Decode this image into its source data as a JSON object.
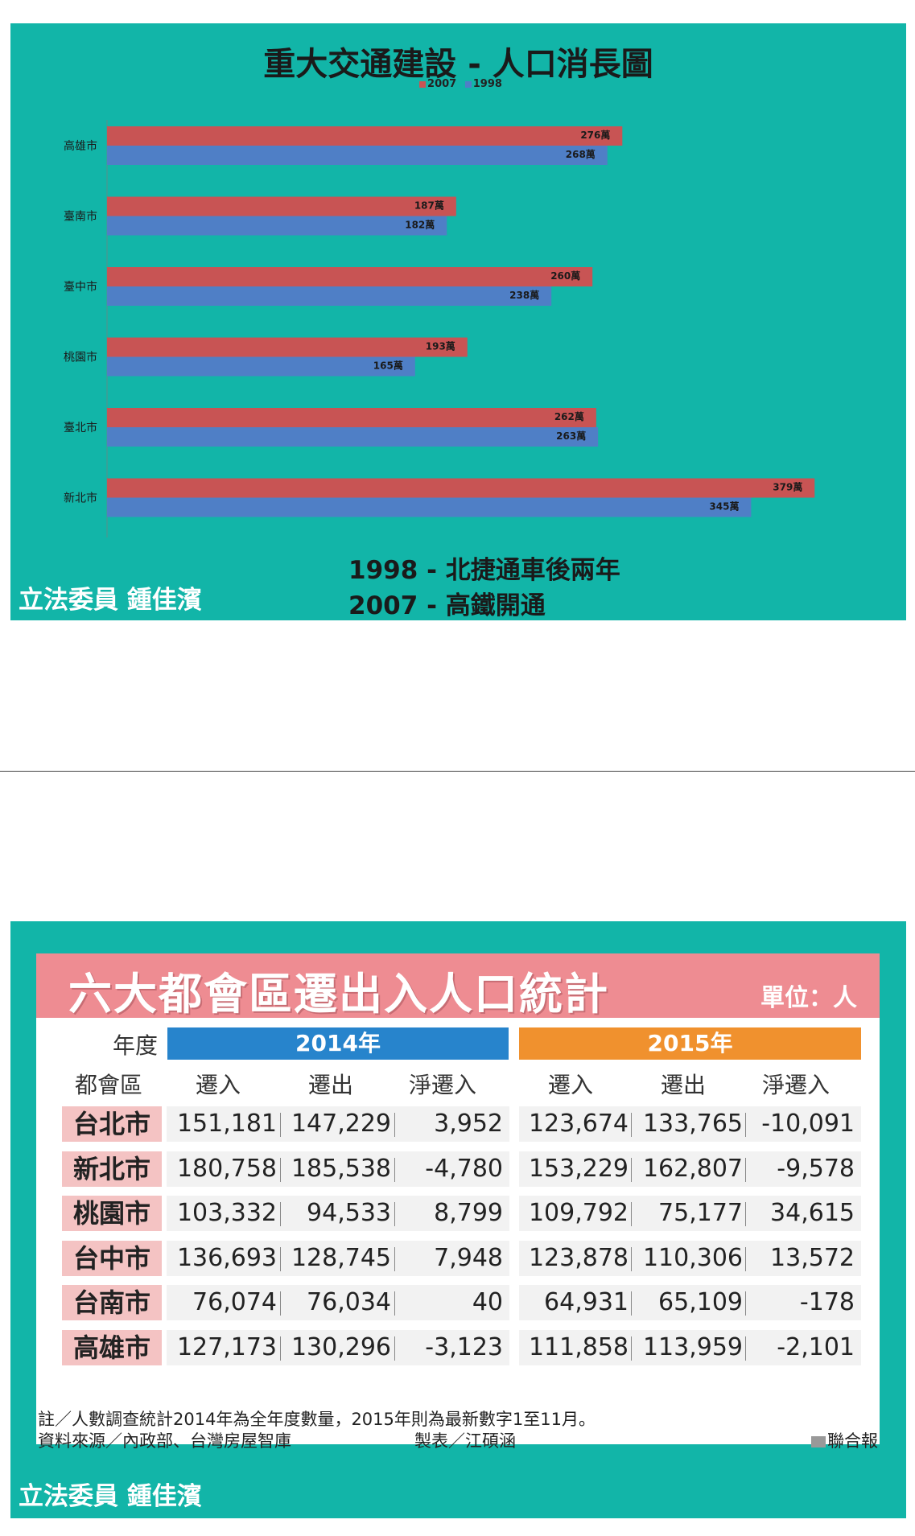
{
  "slide1": {
    "legislator": "立法委員 鍾佳濱",
    "notes": [
      "1998 - 北捷通車後兩年",
      "2007 - 高鐵開通"
    ]
  },
  "chart_data": [
    {
      "type": "bar",
      "orientation": "horizontal",
      "title": "重大交通建設 - 人口消長圖",
      "legend_position": "top",
      "categories": [
        "高雄市",
        "臺南市",
        "臺中市",
        "桃園市",
        "臺北市",
        "新北市"
      ],
      "value_suffix": "萬",
      "series": [
        {
          "name": "2007",
          "color": "#c85454",
          "values": [
            276,
            187,
            260,
            193,
            262,
            379
          ]
        },
        {
          "name": "1998",
          "color": "#4f7fc6",
          "values": [
            268,
            182,
            238,
            165,
            263,
            345
          ]
        }
      ]
    },
    {
      "type": "table",
      "title": "六大都會區遷出入人口統計",
      "unit": "單位：人",
      "year_label": "年度",
      "row_label": "都會區",
      "years": [
        "2014年",
        "2015年"
      ],
      "columns": [
        "遷入",
        "遷出",
        "淨遷入"
      ],
      "rows": [
        {
          "city": "台北市",
          "y2014": [
            "151,181",
            "147,229",
            "3,952"
          ],
          "y2015": [
            "123,674",
            "133,765",
            "-10,091"
          ]
        },
        {
          "city": "新北市",
          "y2014": [
            "180,758",
            "185,538",
            "-4,780"
          ],
          "y2015": [
            "153,229",
            "162,807",
            "-9,578"
          ]
        },
        {
          "city": "桃園市",
          "y2014": [
            "103,332",
            "94,533",
            "8,799"
          ],
          "y2015": [
            "109,792",
            "75,177",
            "34,615"
          ]
        },
        {
          "city": "台中市",
          "y2014": [
            "136,693",
            "128,745",
            "7,948"
          ],
          "y2015": [
            "123,878",
            "110,306",
            "13,572"
          ]
        },
        {
          "city": "台南市",
          "y2014": [
            "76,074",
            "76,034",
            "40"
          ],
          "y2015": [
            "64,931",
            "65,109",
            "-178"
          ]
        },
        {
          "city": "高雄市",
          "y2014": [
            "127,173",
            "130,296",
            "-3,123"
          ],
          "y2015": [
            "111,858",
            "113,959",
            "-2,101"
          ]
        }
      ],
      "footnote": "註／人數調查統計2014年為全年度數量，2015年則為最新數字1至11月。",
      "source": "資料來源／內政部、台灣房屋智庫",
      "maker": "製表／江碩涵",
      "publisher": "聯合報"
    }
  ],
  "slide2": {
    "legislator": "立法委員 鍾佳濱"
  }
}
